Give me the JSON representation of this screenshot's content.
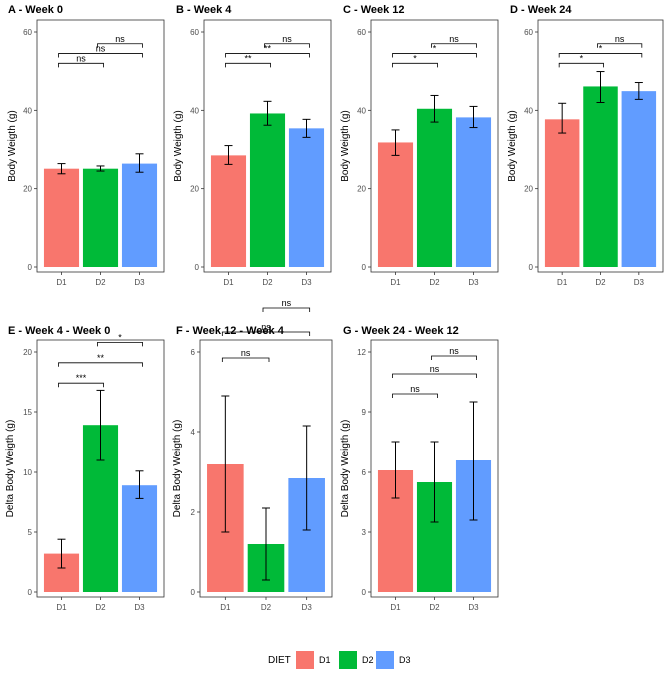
{
  "chart_data": [
    {
      "id": "A",
      "title": "A - Week 0",
      "type": "bar",
      "categories": [
        "D1",
        "D2",
        "D3"
      ],
      "values": [
        25.1,
        25.1,
        26.4
      ],
      "err_low": [
        23.8,
        24.5,
        24.2
      ],
      "err_high": [
        26.4,
        25.8,
        28.9
      ],
      "ylabel": "Body Weigth (g)",
      "ylim": [
        0,
        60
      ],
      "yticks": [
        0,
        20,
        40,
        60
      ],
      "sig": [
        {
          "from": 0,
          "to": 1,
          "y": 52,
          "label": "ns"
        },
        {
          "from": 0,
          "to": 2,
          "y": 54.5,
          "label": "ns"
        },
        {
          "from": 1,
          "to": 2,
          "y": 57,
          "label": "ns"
        }
      ]
    },
    {
      "id": "B",
      "title": "B - Week 4",
      "type": "bar",
      "categories": [
        "D1",
        "D2",
        "D3"
      ],
      "values": [
        28.5,
        39.2,
        35.4
      ],
      "err_low": [
        26.2,
        36.2,
        33.1
      ],
      "err_high": [
        31.0,
        42.3,
        37.7
      ],
      "ylabel": "Body Weigth (g)",
      "ylim": [
        0,
        60
      ],
      "yticks": [
        0,
        20,
        40,
        60
      ],
      "sig": [
        {
          "from": 0,
          "to": 1,
          "y": 52,
          "label": "**"
        },
        {
          "from": 0,
          "to": 2,
          "y": 54.5,
          "label": "**"
        },
        {
          "from": 1,
          "to": 2,
          "y": 57,
          "label": "ns"
        }
      ]
    },
    {
      "id": "C",
      "title": "C - Week 12",
      "type": "bar",
      "categories": [
        "D1",
        "D2",
        "D3"
      ],
      "values": [
        31.8,
        40.4,
        38.2
      ],
      "err_low": [
        28.5,
        37.0,
        35.6
      ],
      "err_high": [
        35.0,
        43.8,
        41.0
      ],
      "ylabel": "Body Weigth (g)",
      "ylim": [
        0,
        60
      ],
      "yticks": [
        0,
        20,
        40,
        60
      ],
      "sig": [
        {
          "from": 0,
          "to": 1,
          "y": 52,
          "label": "*"
        },
        {
          "from": 0,
          "to": 2,
          "y": 54.5,
          "label": "*"
        },
        {
          "from": 1,
          "to": 2,
          "y": 57,
          "label": "ns"
        }
      ]
    },
    {
      "id": "D",
      "title": "D - Week 24",
      "type": "bar",
      "categories": [
        "D1",
        "D2",
        "D3"
      ],
      "values": [
        37.7,
        46.1,
        44.9
      ],
      "err_low": [
        34.2,
        42.0,
        42.8
      ],
      "err_high": [
        41.8,
        49.9,
        47.1
      ],
      "ylabel": "Body Weigth (g)",
      "ylim": [
        0,
        60
      ],
      "yticks": [
        0,
        20,
        40,
        60
      ],
      "sig": [
        {
          "from": 0,
          "to": 1,
          "y": 52,
          "label": "*"
        },
        {
          "from": 0,
          "to": 2,
          "y": 54.5,
          "label": "*"
        },
        {
          "from": 1,
          "to": 2,
          "y": 57,
          "label": "ns"
        }
      ]
    },
    {
      "id": "E",
      "title": "E - Week 4 - Week 0",
      "type": "bar",
      "categories": [
        "D1",
        "D2",
        "D3"
      ],
      "values": [
        3.2,
        13.9,
        8.9
      ],
      "err_low": [
        2.0,
        11.0,
        7.8
      ],
      "err_high": [
        4.4,
        16.8,
        10.1
      ],
      "ylabel": "Delta Body Weigth (g)",
      "ylim": [
        0,
        20
      ],
      "yticks": [
        0,
        5,
        10,
        15,
        20
      ],
      "sig": [
        {
          "from": 0,
          "to": 1,
          "y": 17.4,
          "label": "***"
        },
        {
          "from": 0,
          "to": 2,
          "y": 19.1,
          "label": "**"
        },
        {
          "from": 1,
          "to": 2,
          "y": 20.8,
          "label": "*"
        }
      ]
    },
    {
      "id": "F",
      "title": "F - Week 12 - Week 4",
      "type": "bar",
      "categories": [
        "D1",
        "D2",
        "D3"
      ],
      "values": [
        3.2,
        1.2,
        2.85
      ],
      "err_low": [
        1.5,
        0.3,
        1.55
      ],
      "err_high": [
        4.9,
        2.1,
        4.15
      ],
      "ylabel": "Delta Body Weigth (g)",
      "ylim": [
        0,
        6
      ],
      "yticks": [
        0,
        2,
        4,
        6
      ],
      "sig": [
        {
          "from": 0,
          "to": 1,
          "y": 5.85,
          "label": "ns"
        },
        {
          "from": 0,
          "to": 2,
          "y": 6.5,
          "label": "ns"
        },
        {
          "from": 1,
          "to": 2,
          "y": 7.1,
          "label": "ns"
        }
      ]
    },
    {
      "id": "G",
      "title": "G - Week 24 - Week 12",
      "type": "bar",
      "categories": [
        "D1",
        "D2",
        "D3"
      ],
      "values": [
        6.1,
        5.5,
        6.6
      ],
      "err_low": [
        4.7,
        3.5,
        3.6
      ],
      "err_high": [
        7.5,
        7.5,
        9.5
      ],
      "ylabel": "Delta Body Weigth (g)",
      "ylim": [
        0,
        12
      ],
      "yticks": [
        0,
        3,
        6,
        9,
        12
      ],
      "sig": [
        {
          "from": 0,
          "to": 1,
          "y": 9.9,
          "label": "ns"
        },
        {
          "from": 0,
          "to": 2,
          "y": 10.9,
          "label": "ns"
        },
        {
          "from": 1,
          "to": 2,
          "y": 11.8,
          "label": "ns"
        }
      ]
    }
  ],
  "legend": {
    "title": "DIET",
    "items": [
      {
        "label": "D1",
        "color": "#F8766D"
      },
      {
        "label": "D2",
        "color": "#00BA38"
      },
      {
        "label": "D3",
        "color": "#619CFF"
      }
    ]
  }
}
